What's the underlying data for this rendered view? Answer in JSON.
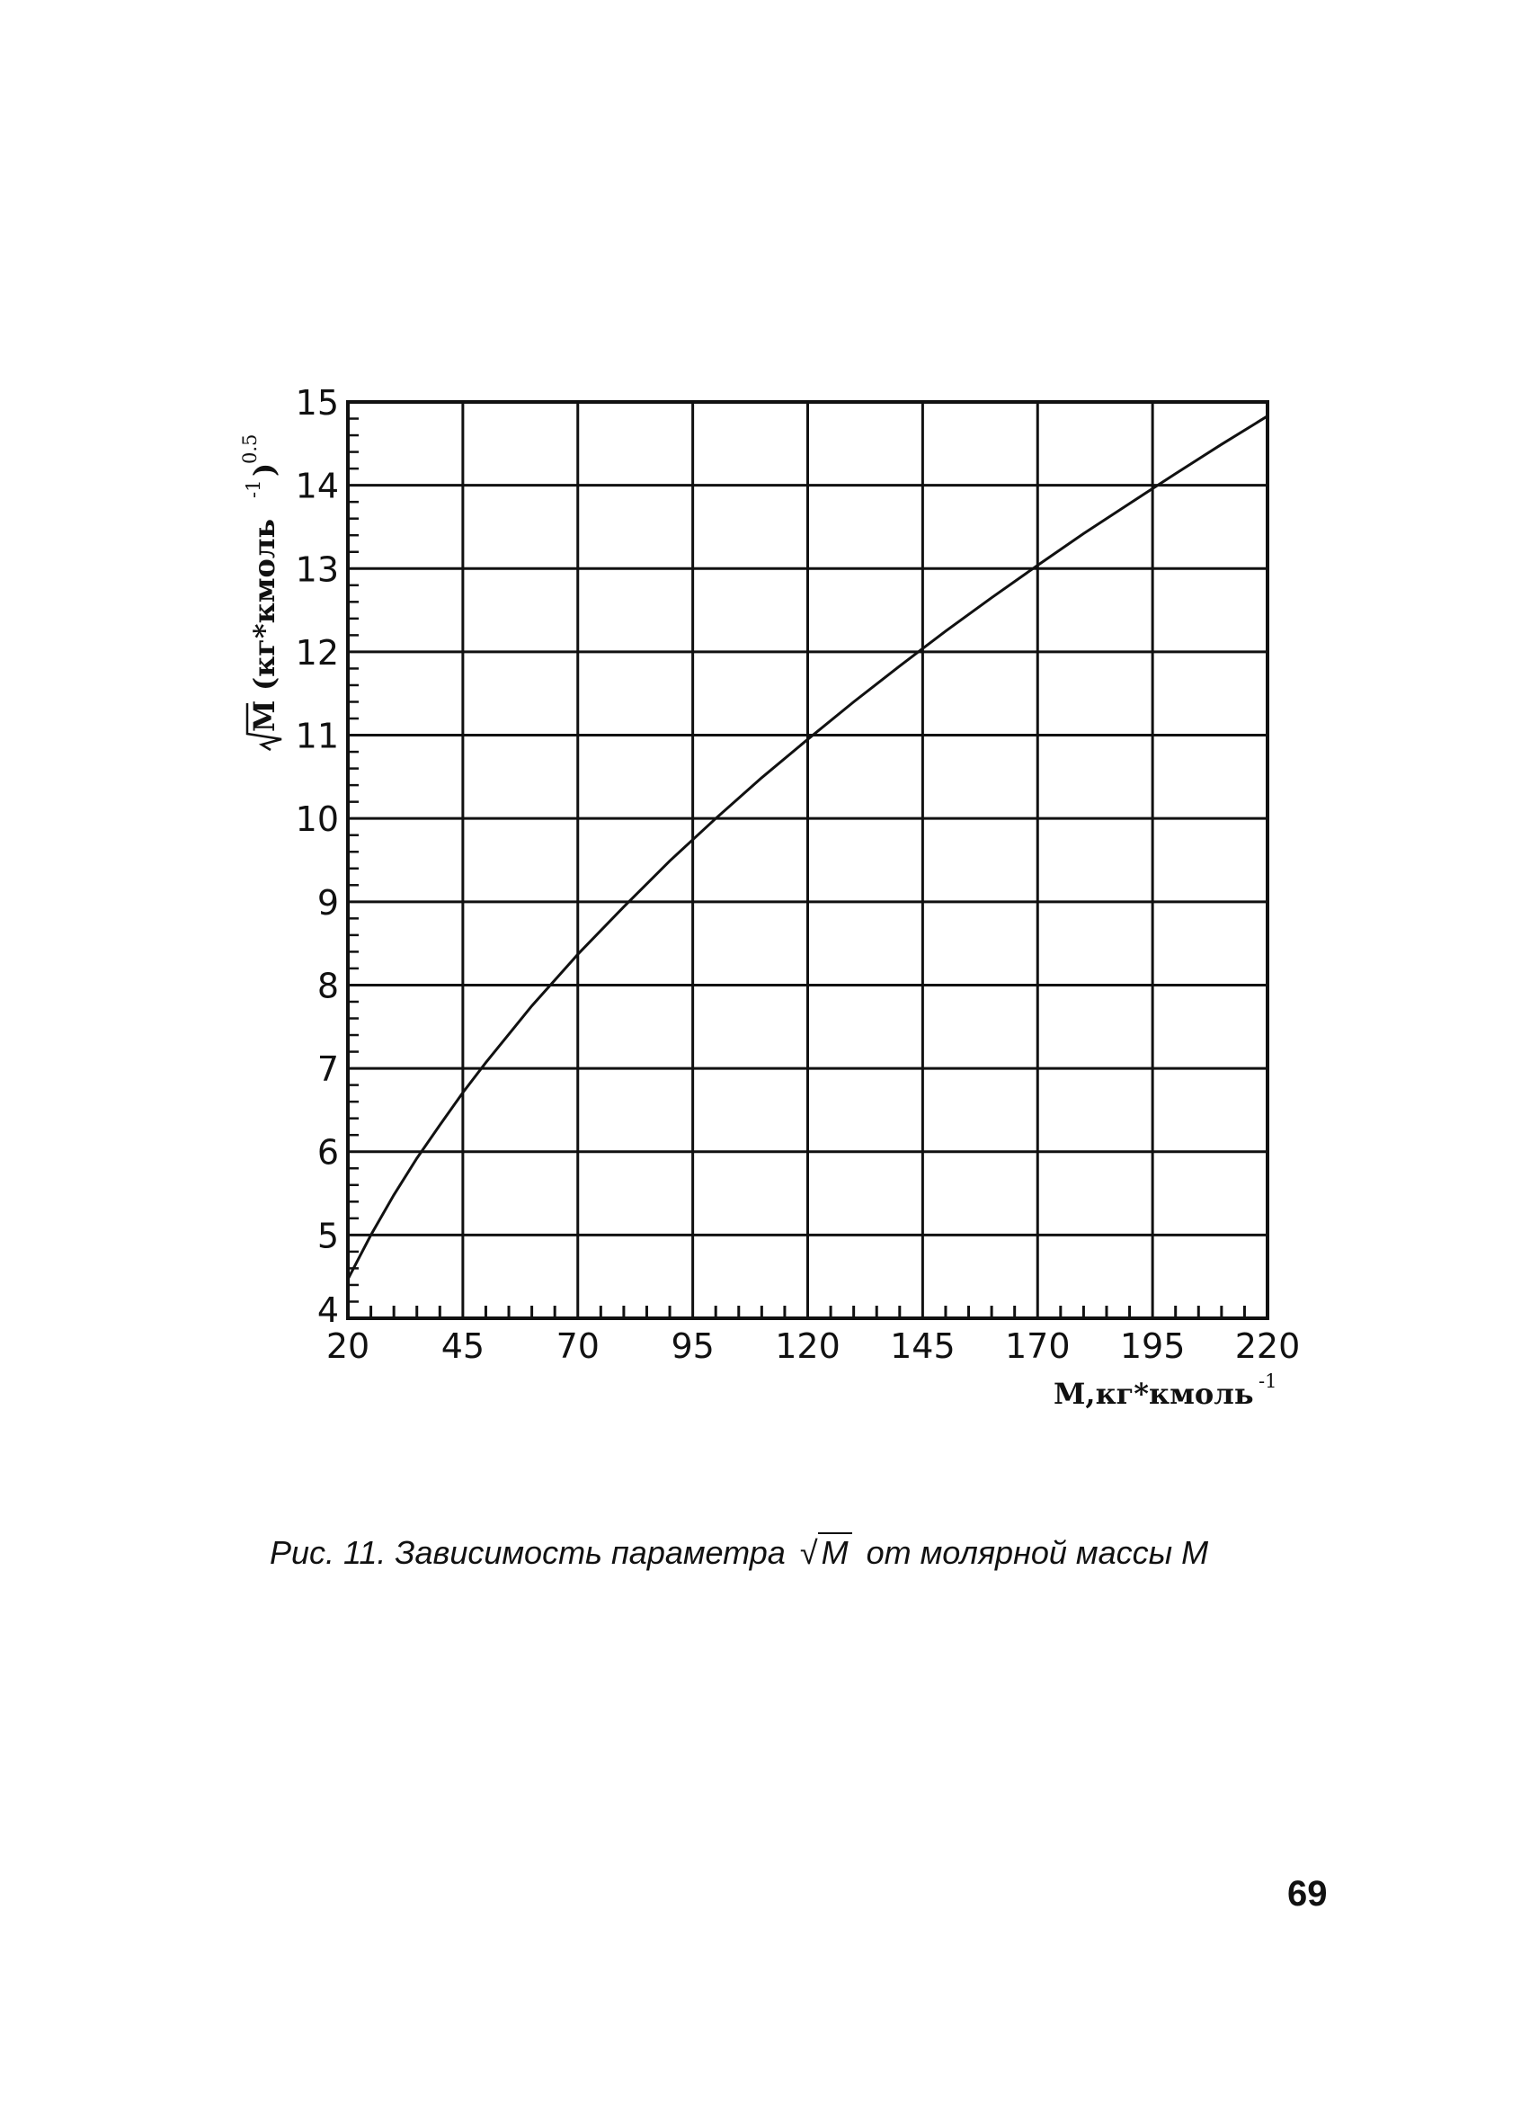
{
  "chart_data": {
    "type": "line",
    "title": "",
    "xlabel": "M,кг*кмоль",
    "xlabel_sup": "-1",
    "ylabel_symbol": "M",
    "ylabel_unit": "(кг*кмоль",
    "ylabel_unit_sup": "-1",
    "ylabel_close": ")",
    "ylabel_power": "0.5",
    "xlim": [
      20,
      220
    ],
    "ylim": [
      4,
      15
    ],
    "x_ticks": [
      "20",
      "45",
      "70",
      "95",
      "120",
      "145",
      "170",
      "195",
      "220"
    ],
    "y_ticks": [
      "4",
      "5",
      "6",
      "7",
      "8",
      "9",
      "10",
      "11",
      "12",
      "13",
      "14",
      "15"
    ],
    "x_tick_values": [
      20,
      45,
      70,
      95,
      120,
      145,
      170,
      195,
      220
    ],
    "y_tick_values": [
      4,
      5,
      6,
      7,
      8,
      9,
      10,
      11,
      12,
      13,
      14,
      15
    ],
    "grid": true,
    "series": [
      {
        "x": [
          20,
          25,
          30,
          35,
          40,
          45,
          50,
          60,
          70,
          80,
          90,
          100,
          110,
          120,
          130,
          140,
          150,
          160,
          170,
          180,
          190,
          200,
          210,
          220
        ],
        "y": [
          4.47,
          5.0,
          5.48,
          5.92,
          6.32,
          6.71,
          7.07,
          7.75,
          8.37,
          8.94,
          9.49,
          10.0,
          10.49,
          10.95,
          11.4,
          11.83,
          12.25,
          12.65,
          13.04,
          13.42,
          13.78,
          14.14,
          14.49,
          14.83
        ]
      }
    ]
  },
  "caption": {
    "prefix": "Рис. 11. Зависимость параметра",
    "sqrt_symbol": "√",
    "sqrt_arg": "M",
    "suffix": "от молярной массы М"
  },
  "page_number": "69"
}
